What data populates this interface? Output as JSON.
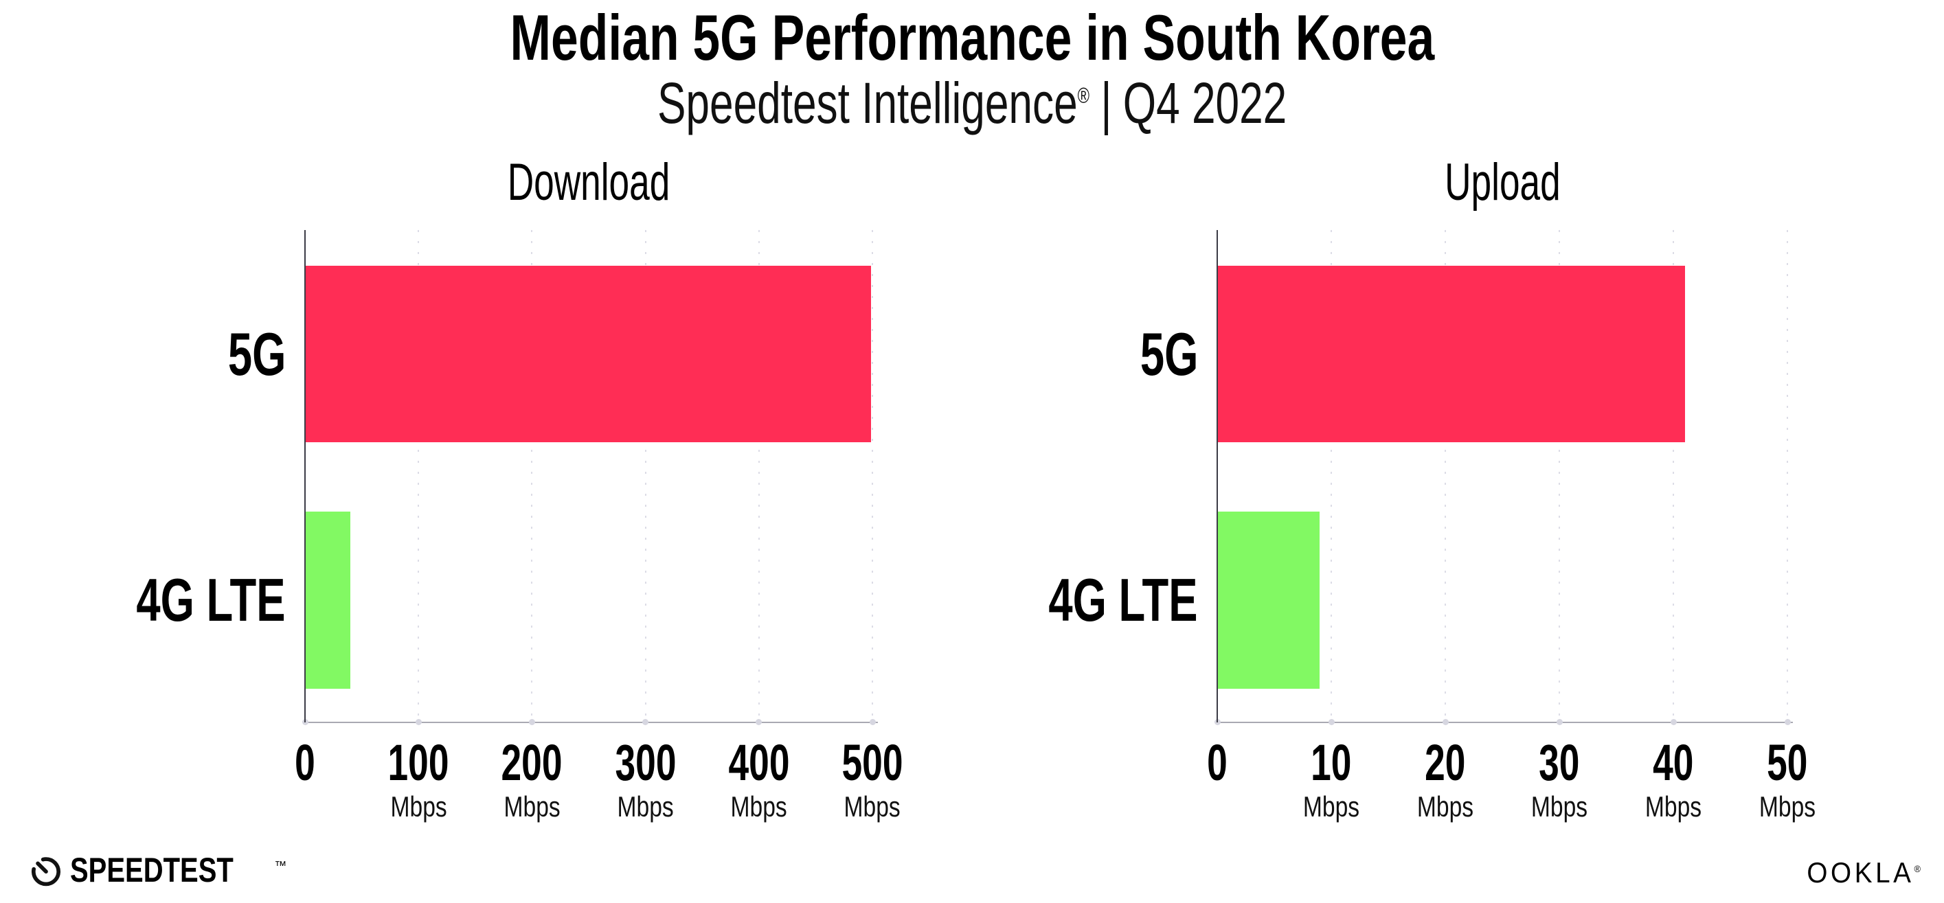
{
  "header": {
    "title": "Median 5G Performance in South Korea",
    "subtitle": {
      "brand": "Speedtest Intelligence",
      "registered": "®",
      "separator": "|",
      "period": "Q4 2022"
    }
  },
  "chart_data": [
    {
      "type": "bar",
      "orientation": "horizontal",
      "title": "Download",
      "categories": [
        "5G",
        "4G LTE"
      ],
      "values": [
        499,
        40
      ],
      "unit": "Mbps",
      "xlim": [
        0,
        500
      ],
      "xticks": [
        0,
        100,
        200,
        300,
        400,
        500
      ],
      "bar_colors": [
        "#FF2D55",
        "#82F963"
      ],
      "grid": "vertical-dotted",
      "legend": "none"
    },
    {
      "type": "bar",
      "orientation": "horizontal",
      "title": "Upload",
      "categories": [
        "5G",
        "4G LTE"
      ],
      "values": [
        41,
        9
      ],
      "unit": "Mbps",
      "xlim": [
        0,
        50
      ],
      "xticks": [
        0,
        10,
        20,
        30,
        40,
        50
      ],
      "bar_colors": [
        "#FF2D55",
        "#82F963"
      ],
      "grid": "vertical-dotted",
      "legend": "none"
    }
  ],
  "footer": {
    "speedtest_label": "SPEEDTEST",
    "speedtest_trademark": "™",
    "ookla_label": "OOKLA",
    "ookla_registered": "®"
  },
  "colors": {
    "bar_5g": "#FF2D55",
    "bar_4g_lte": "#82F963",
    "y_axis": "#3C3C46",
    "baseline": "#A9A9B2",
    "grid_dots": "#DCDCE6",
    "text": "#000000",
    "background": "#FFFFFF"
  }
}
